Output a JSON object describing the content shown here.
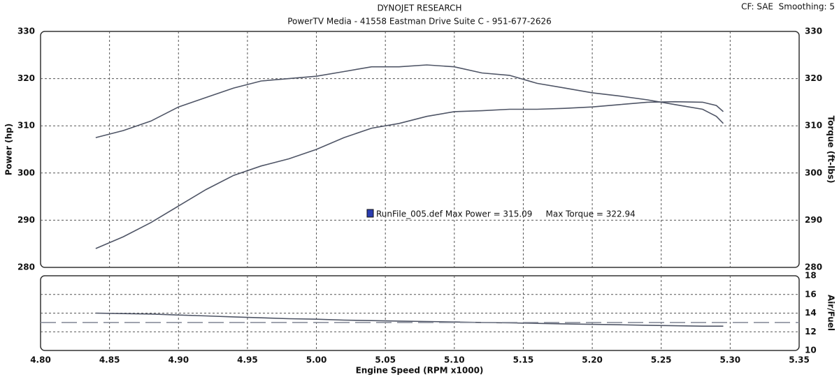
{
  "chart_data": [
    {
      "type": "line",
      "title": "DYNOJET RESEARCH",
      "subtitle": "PowerTV Media - 41558 Eastman Drive Suite C - 951-677-2626",
      "note": "CF: SAE  Smoothing: 5",
      "annotation": "RunFile_005.def Max Power = 315.09     Max Torque = 322.94",
      "y_label": "Power (hp)",
      "y2_label": "Torque (ft-lbs)",
      "xlim": [
        4.8,
        5.35
      ],
      "ylim": [
        280,
        330
      ],
      "yticks": [
        280,
        290,
        300,
        310,
        320,
        330
      ],
      "y2lim": [
        280,
        330
      ],
      "y2ticks": [
        280,
        290,
        300,
        310,
        320,
        330
      ],
      "grid": true,
      "series": [
        {
          "color": "#4f5566",
          "x": [
            4.84,
            4.86,
            4.88,
            4.9,
            4.92,
            4.94,
            4.96,
            4.98,
            5.0,
            5.02,
            5.04,
            5.06,
            5.08,
            5.1,
            5.12,
            5.14,
            5.16,
            5.18,
            5.2,
            5.22,
            5.24,
            5.26,
            5.28,
            5.29,
            5.295
          ],
          "values": [
            284,
            286.5,
            289.5,
            293,
            296.5,
            299.5,
            301.5,
            303,
            305,
            307.5,
            309.5,
            310.5,
            312,
            313,
            313.2,
            313.5,
            313.5,
            313.7,
            314,
            314.5,
            315,
            315.1,
            315,
            314.3,
            313
          ]
        },
        {
          "color": "#4f5566",
          "axis": "y2",
          "x": [
            4.84,
            4.86,
            4.88,
            4.9,
            4.92,
            4.94,
            4.96,
            4.98,
            5.0,
            5.02,
            5.04,
            5.06,
            5.08,
            5.1,
            5.12,
            5.14,
            5.16,
            5.18,
            5.2,
            5.22,
            5.24,
            5.26,
            5.28,
            5.29,
            5.295
          ],
          "values": [
            307.5,
            309,
            311,
            314,
            316,
            318,
            319.5,
            320,
            320.5,
            321.5,
            322.5,
            322.5,
            322.9,
            322.5,
            321.2,
            320.7,
            319,
            318,
            317,
            316.3,
            315.5,
            314.5,
            313.5,
            312,
            310.5
          ]
        }
      ]
    },
    {
      "type": "line",
      "y_label": "Air/Fuel",
      "x_label": "Engine Speed (RPM x1000)",
      "xlim": [
        4.8,
        5.35
      ],
      "xticks": [
        {
          "value": 4.8,
          "label": "4.80"
        },
        4.85,
        {
          "value": 4.9,
          "label": "4.90"
        },
        4.95,
        {
          "value": 5.0,
          "label": "5.00"
        },
        5.05,
        {
          "value": 5.1,
          "label": "5.10"
        },
        5.15,
        {
          "value": 5.2,
          "label": "5.20"
        },
        5.25,
        {
          "value": 5.3,
          "label": "5.30"
        },
        5.35
      ],
      "ylim": [
        10,
        18
      ],
      "yticks": [
        10,
        12,
        14,
        16,
        18
      ],
      "grid": true,
      "series": [
        {
          "color": "#4f5566",
          "x": [
            4.84,
            4.86,
            4.88,
            4.9,
            4.92,
            4.94,
            4.96,
            4.98,
            5.0,
            5.02,
            5.04,
            5.06,
            5.08,
            5.1,
            5.12,
            5.14,
            5.16,
            5.18,
            5.2,
            5.22,
            5.24,
            5.26,
            5.28,
            5.29,
            5.295
          ],
          "values": [
            14,
            13.95,
            13.9,
            13.8,
            13.7,
            13.6,
            13.5,
            13.4,
            13.35,
            13.25,
            13.2,
            13.15,
            13.1,
            13.05,
            13,
            12.95,
            12.9,
            12.85,
            12.8,
            12.75,
            12.7,
            12.65,
            12.6,
            12.6,
            12.6
          ]
        },
        {
          "color": "#8a8f9c",
          "dashed": true,
          "x": [
            4.8,
            5.35
          ],
          "values": [
            13,
            13
          ]
        }
      ]
    }
  ]
}
